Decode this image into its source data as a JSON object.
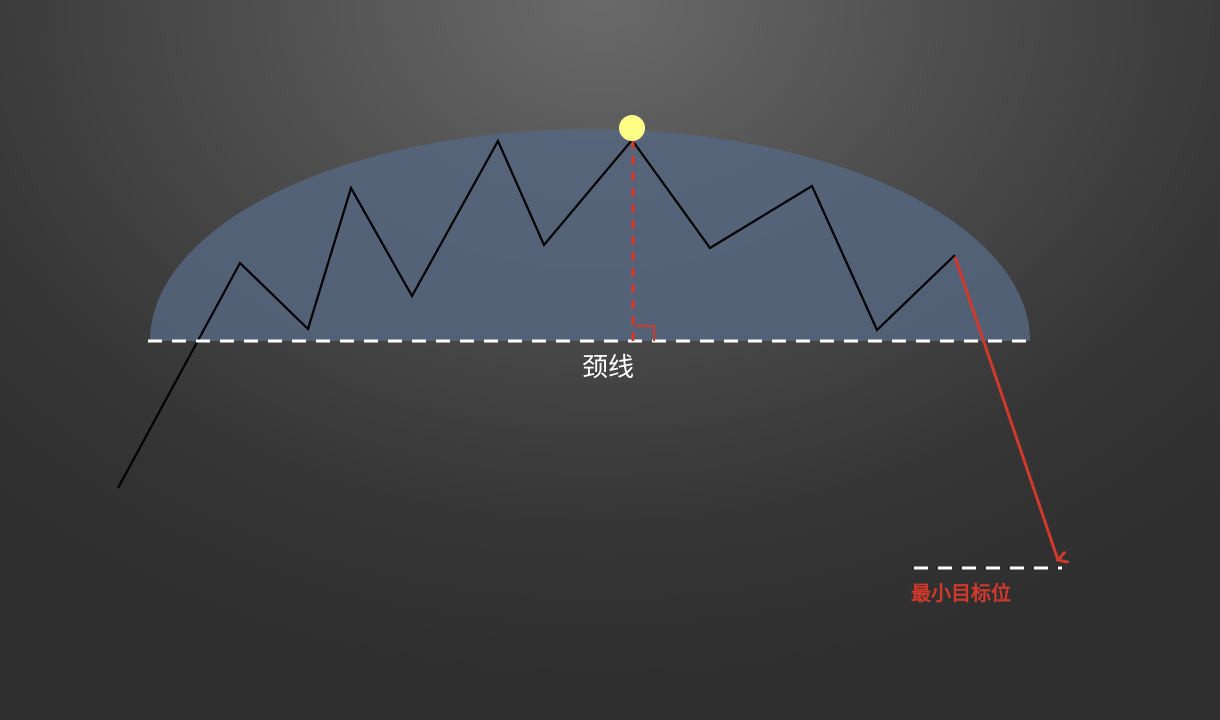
{
  "diagram": {
    "neckline_label": "颈线",
    "target_label": "最小目标位",
    "colors": {
      "dome_fill": "#56667f",
      "price_line": "#000000",
      "neckline": "#ffffff",
      "measure_line": "#d0392b",
      "peak_marker": "#ffff88",
      "target_arrow": "#d0392b",
      "target_text": "#d0392b"
    }
  }
}
